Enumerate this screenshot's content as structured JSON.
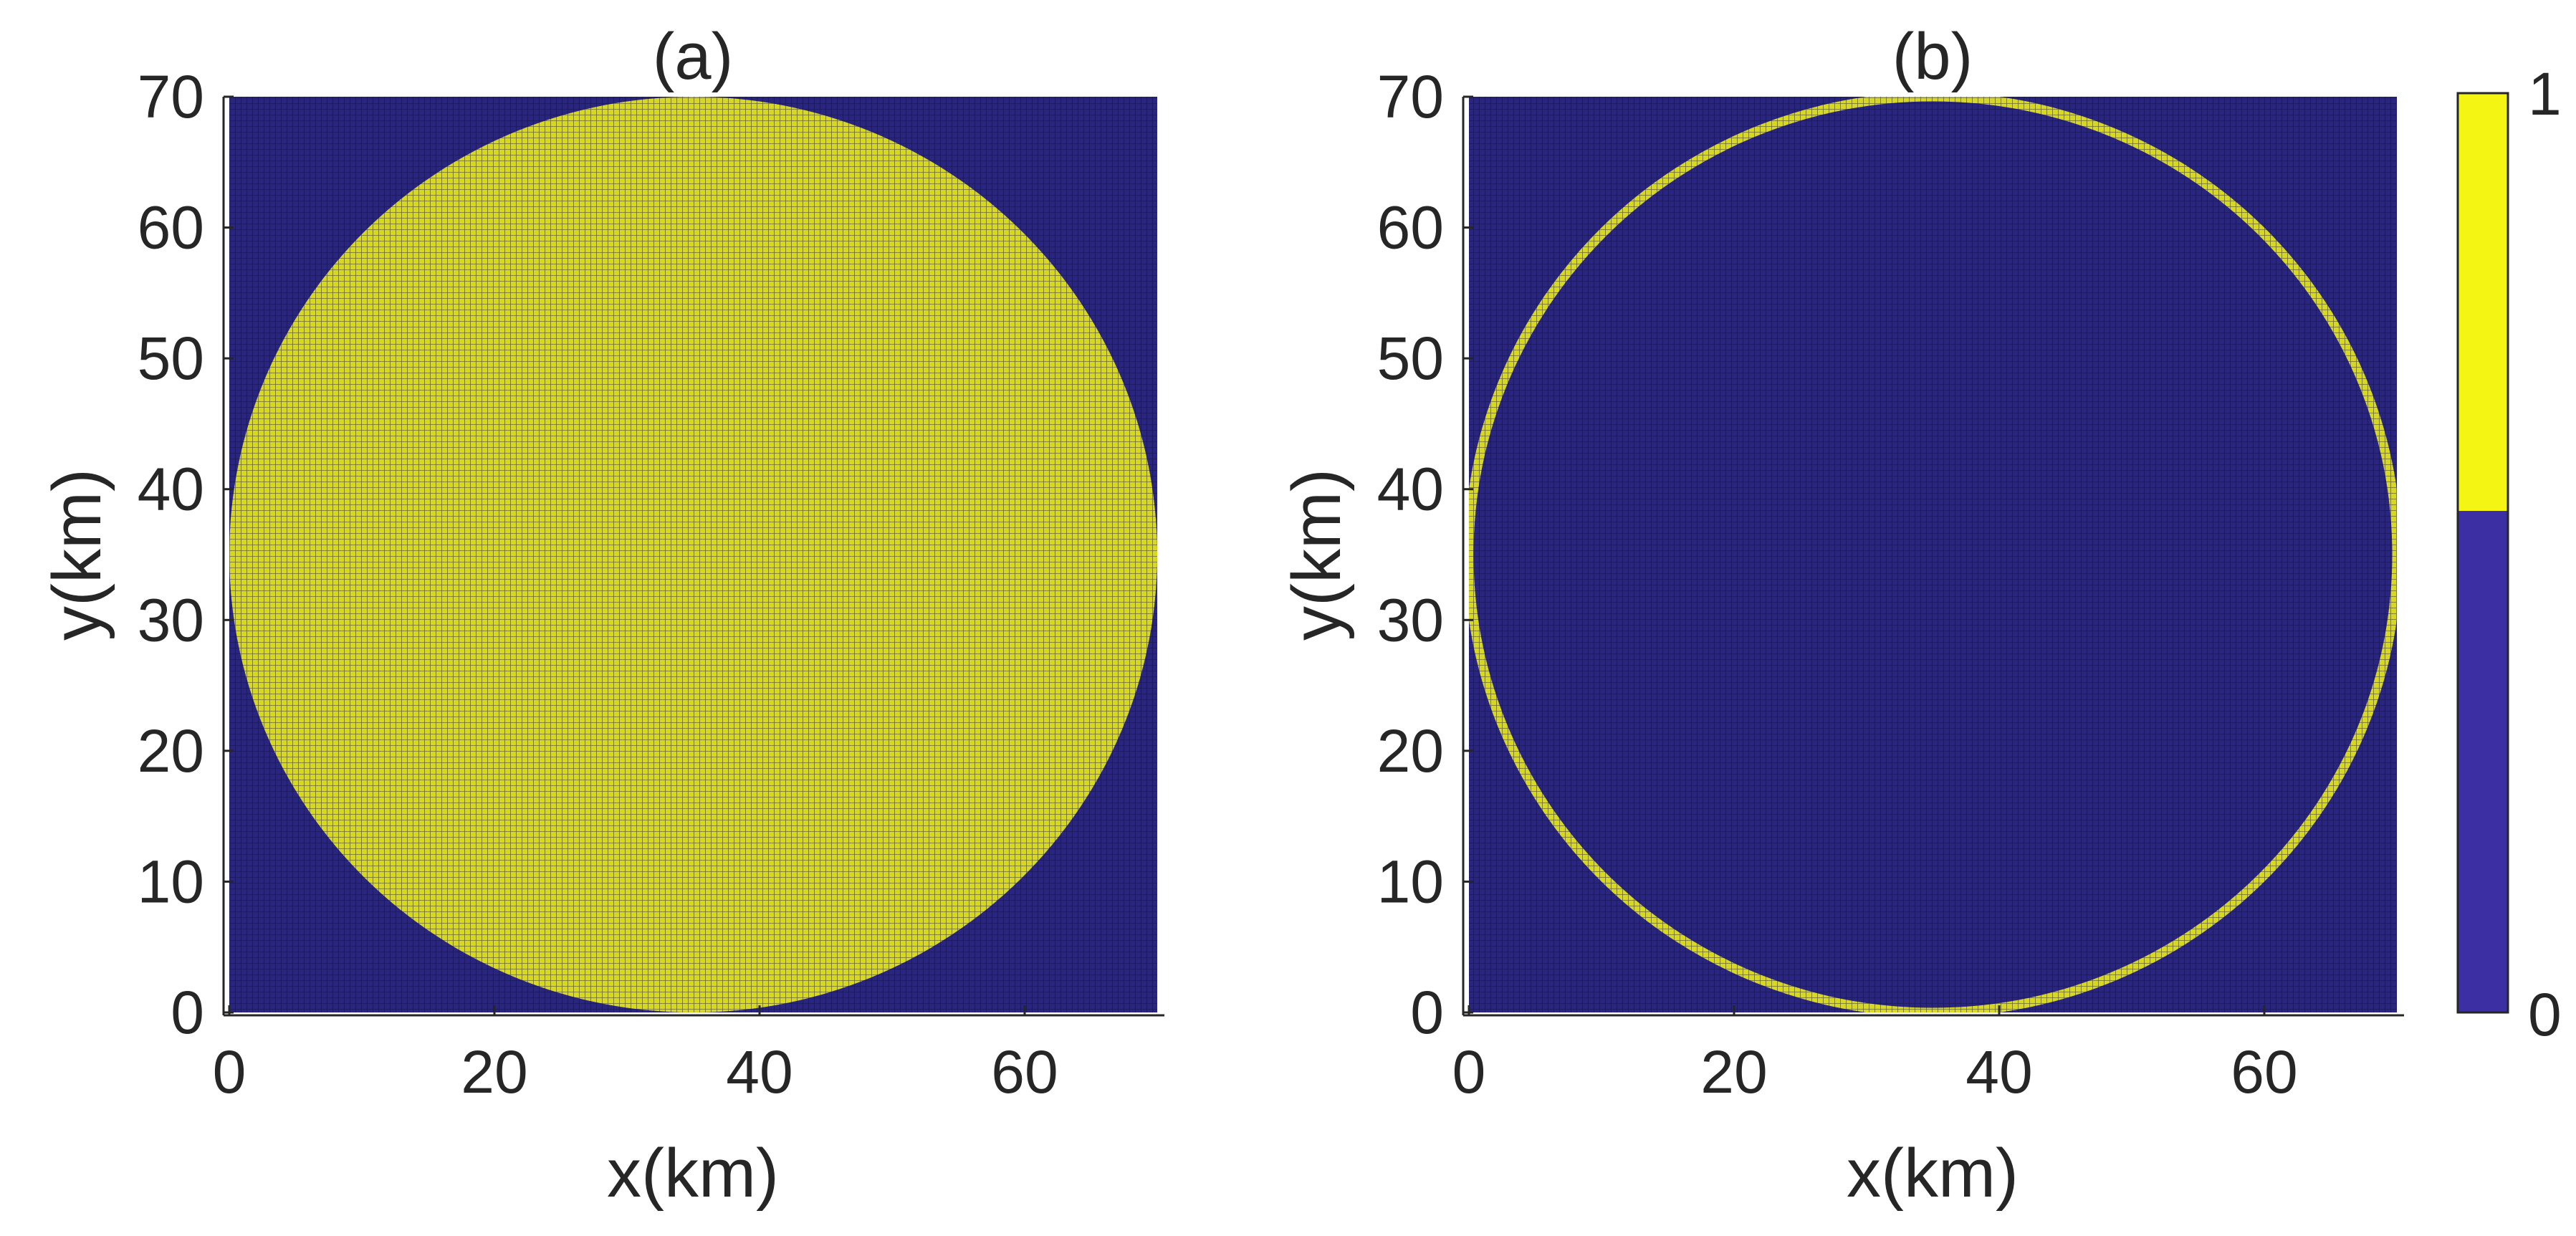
{
  "chart_data": [
    {
      "type": "heatmap",
      "title": "(a)",
      "xlabel": "x(km)",
      "ylabel": "y(km)",
      "xlim": [
        0,
        70
      ],
      "ylim": [
        0,
        70
      ],
      "xticks": [
        0,
        20,
        40,
        60
      ],
      "yticks": [
        0,
        10,
        20,
        30,
        40,
        50,
        60,
        70
      ],
      "grid_spacing_km": 0.35,
      "background_value": 0,
      "shape": "filled-disk",
      "circle": {
        "cx": 35,
        "cy": 35,
        "r": 35,
        "value": 1
      }
    },
    {
      "type": "heatmap",
      "title": "(b)",
      "xlabel": "x(km)",
      "ylabel": "y(km)",
      "xlim": [
        0,
        70
      ],
      "ylim": [
        0,
        70
      ],
      "xticks": [
        0,
        20,
        40,
        60
      ],
      "yticks": [
        0,
        10,
        20,
        30,
        40,
        50,
        60,
        70
      ],
      "grid_spacing_km": 0.35,
      "background_value": 0,
      "shape": "ring",
      "circle": {
        "cx": 35,
        "cy": 35,
        "r": 35,
        "ring_width_km": 0.5,
        "value": 1
      }
    }
  ],
  "colorbar": {
    "min": 0,
    "max": 1,
    "tick_labels": [
      "0",
      "1"
    ],
    "levels": [
      {
        "value": 0,
        "color": "#3b2fa3"
      },
      {
        "value": 1,
        "color": "#f5f514"
      }
    ]
  },
  "colors": {
    "low": "#2a2580",
    "high": "#d8d81e",
    "grid_line": "#0a0a40",
    "axis": "#262626"
  }
}
